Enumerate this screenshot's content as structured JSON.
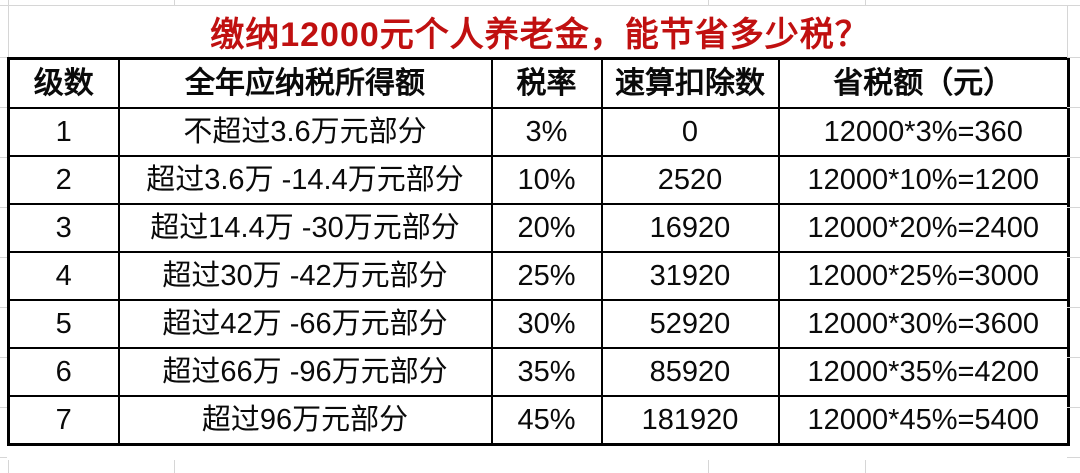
{
  "title": {
    "text": "缴纳12000元个人养老金，能节省多少税？",
    "color": "#c01010"
  },
  "chart_data": {
    "type": "table",
    "title": "缴纳12000元个人养老金，能节省多少税？",
    "columns": [
      "级数",
      "全年应纳税所得额",
      "税率",
      "速算扣除数",
      "省税额（元）"
    ],
    "rows": [
      [
        "1",
        "不超过3.6万元部分",
        "3%",
        "0",
        "12000*3%=360"
      ],
      [
        "2",
        "超过3.6万 -14.4万元部分",
        "10%",
        "2520",
        "12000*10%=1200"
      ],
      [
        "3",
        "超过14.4万 -30万元部分",
        "20%",
        "16920",
        "12000*20%=2400"
      ],
      [
        "4",
        "超过30万 -42万元部分",
        "25%",
        "31920",
        "12000*25%=3000"
      ],
      [
        "5",
        "超过42万 -66万元部分",
        "30%",
        "52920",
        "12000*30%=3600"
      ],
      [
        "6",
        "超过66万 -96万元部分",
        "35%",
        "85920",
        "12000*35%=4200"
      ],
      [
        "7",
        "超过96万元部分",
        "45%",
        "181920",
        "12000*45%=5400"
      ]
    ]
  },
  "colors": {
    "title_red": "#c01010",
    "table_border": "#000000",
    "spreadsheet_gridline": "#d6d6d6"
  }
}
